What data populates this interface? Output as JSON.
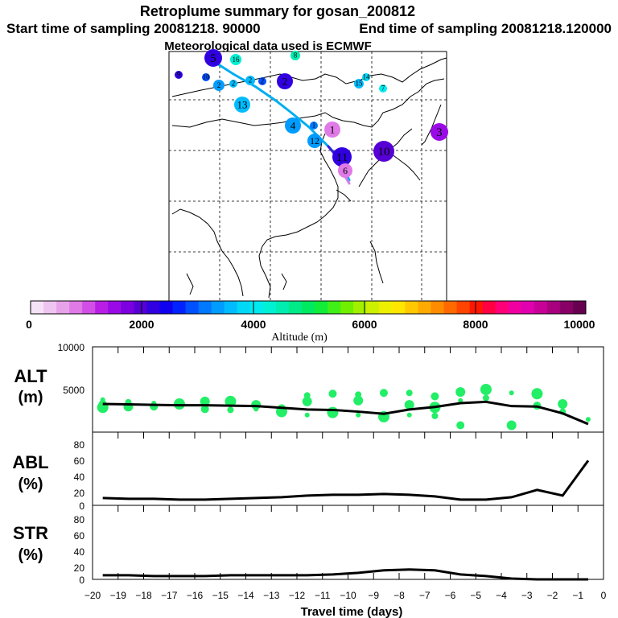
{
  "header": {
    "title": "Retroplume summary for gosan_200812",
    "start": "Start time of sampling 20081218. 90000",
    "end": "End time of sampling 20081218.120000",
    "met": "Meteorological data used is ECMWF"
  },
  "colorbar": {
    "label": "Altitude (m)",
    "ticks": [
      "0",
      "2000",
      "4000",
      "6000",
      "8000",
      "10000"
    ],
    "colors": [
      "#f6e2f6",
      "#f0c4f0",
      "#e8a2ea",
      "#e07ae6",
      "#d24ee6",
      "#b81ee6",
      "#9a0ae6",
      "#7c00e0",
      "#5600d6",
      "#3000e0",
      "#1000f0",
      "#0022ff",
      "#0050ff",
      "#0078ff",
      "#009cff",
      "#00bcff",
      "#00d8f8",
      "#00eaf0",
      "#00f0d4",
      "#00ecb0",
      "#00ea88",
      "#00ea60",
      "#10ec38",
      "#40ee18",
      "#70f000",
      "#a2f000",
      "#ccf000",
      "#eef000",
      "#ffe600",
      "#ffc800",
      "#ffaa00",
      "#ff8c00",
      "#ff6a00",
      "#ff4400",
      "#ff1800",
      "#ff0040",
      "#ff0078",
      "#f000a0",
      "#e000b0",
      "#c80098",
      "#a8007e",
      "#880066",
      "#680050"
    ]
  },
  "map": {
    "plume_points": [
      {
        "label": "5",
        "alt": 2100
      },
      {
        "label": "16",
        "alt": 4400
      },
      {
        "label": "8",
        "alt": 4600
      },
      {
        "label": "9",
        "alt": 2300
      },
      {
        "label": "10",
        "alt": 3000
      },
      {
        "label": "2",
        "alt": 3400
      },
      {
        "label": "2",
        "alt": 3500
      },
      {
        "label": "2",
        "alt": 3700
      },
      {
        "label": "2",
        "alt": 2800
      },
      {
        "label": "2",
        "alt": 2100
      },
      {
        "label": "13",
        "alt": 3500
      },
      {
        "label": "15",
        "alt": 3700
      },
      {
        "label": "14",
        "alt": 3800
      },
      {
        "label": "7",
        "alt": 4000
      },
      {
        "label": "4",
        "alt": 3300
      },
      {
        "label": "1",
        "alt": 3200
      },
      {
        "label": "1",
        "alt": 800
      },
      {
        "label": "12",
        "alt": 3300
      },
      {
        "label": "3",
        "alt": 1600
      },
      {
        "label": "11",
        "alt": 2200
      },
      {
        "label": "10",
        "alt": 1900
      },
      {
        "label": "6",
        "alt": 700
      }
    ]
  },
  "panels": {
    "alt": {
      "label_top": "ALT",
      "label_bottom": "(m)",
      "yticks": [
        "10000",
        "5000",
        "0"
      ]
    },
    "abl": {
      "label_top": "ABL",
      "label_bottom": "(%)",
      "yticks": [
        "80",
        "60",
        "40",
        "20",
        "0"
      ]
    },
    "str": {
      "label_top": "STR",
      "label_bottom": "(%)",
      "yticks": [
        "80",
        "60",
        "40",
        "20",
        "0"
      ]
    }
  },
  "chart_data": [
    {
      "type": "line",
      "title": "ALT (m)",
      "xlabel": "Travel time (days)",
      "ylabel": "ALT (m)",
      "xlim": [
        -20,
        0
      ],
      "ylim": [
        0,
        10000
      ],
      "x": [
        -19.6,
        -18.6,
        -17.6,
        -16.6,
        -15.6,
        -14.6,
        -13.6,
        -12.6,
        -11.6,
        -10.6,
        -9.6,
        -8.6,
        -7.6,
        -6.6,
        -5.6,
        -4.6,
        -3.6,
        -2.6,
        -1.6,
        -0.6
      ],
      "series": [
        {
          "name": "mean altitude",
          "values": [
            3300,
            3250,
            3200,
            3150,
            3150,
            3100,
            3050,
            2850,
            2650,
            2600,
            2400,
            2150,
            2650,
            2950,
            3400,
            3550,
            3050,
            3000,
            2200,
            950
          ]
        }
      ],
      "scatter": {
        "x": [
          -19.6,
          -19.6,
          -19.6,
          -18.6,
          -18.6,
          -17.6,
          -17.6,
          -16.6,
          -16.6,
          -15.6,
          -15.6,
          -15.6,
          -14.6,
          -14.6,
          -13.6,
          -13.6,
          -12.6,
          -12.6,
          -11.6,
          -11.6,
          -11.6,
          -10.6,
          -10.6,
          -9.6,
          -9.6,
          -9.6,
          -8.6,
          -8.6,
          -7.6,
          -7.6,
          -7.6,
          -6.6,
          -6.6,
          -6.6,
          -5.6,
          -5.6,
          -5.6,
          -4.6,
          -4.6,
          -3.6,
          -3.6,
          -2.6,
          -2.6,
          -1.6,
          -1.6,
          -0.6
        ],
        "y": [
          3800,
          3300,
          2900,
          3500,
          3000,
          3400,
          3000,
          3300,
          3100,
          3600,
          3000,
          2700,
          3600,
          2600,
          3200,
          2700,
          2800,
          2400,
          4300,
          3600,
          2000,
          4500,
          2300,
          4400,
          3700,
          2000,
          4600,
          1800,
          4600,
          3200,
          2000,
          4200,
          2900,
          1900,
          4700,
          3700,
          800,
          5000,
          4000,
          800,
          4600,
          3100,
          4500,
          2400,
          3300,
          1500
        ]
      }
    },
    {
      "type": "line",
      "title": "ABL (%)",
      "xlabel": "Travel time (days)",
      "ylabel": "ABL (%)",
      "xlim": [
        -20,
        0
      ],
      "ylim": [
        0,
        90
      ],
      "x": [
        -19.6,
        -18.6,
        -17.6,
        -16.6,
        -15.6,
        -14.6,
        -13.6,
        -12.6,
        -11.6,
        -10.6,
        -9.6,
        -8.6,
        -7.6,
        -6.6,
        -5.6,
        -4.6,
        -3.6,
        -2.6,
        -1.6,
        -0.6
      ],
      "series": [
        {
          "name": "ABL",
          "values": [
            9,
            8,
            8,
            7,
            7,
            8,
            9,
            10,
            12,
            13,
            13,
            14,
            13,
            11,
            7,
            7,
            10,
            19,
            12,
            55
          ]
        }
      ]
    },
    {
      "type": "line",
      "title": "STR (%)",
      "xlabel": "Travel time (days)",
      "ylabel": "STR (%)",
      "xlim": [
        -20,
        0
      ],
      "ylim": [
        0,
        90
      ],
      "x": [
        -19.6,
        -18.6,
        -17.6,
        -16.6,
        -15.6,
        -14.6,
        -13.6,
        -12.6,
        -11.6,
        -10.6,
        -9.6,
        -8.6,
        -7.6,
        -6.6,
        -5.6,
        -4.6,
        -3.6,
        -2.6,
        -1.6,
        -0.6
      ],
      "series": [
        {
          "name": "STR",
          "values": [
            5,
            5,
            4,
            4,
            4,
            5,
            5,
            5,
            5,
            6,
            8,
            11,
            12,
            11,
            6,
            4,
            1,
            0,
            0,
            0
          ]
        }
      ]
    }
  ],
  "xaxis": {
    "label": "Travel time (days)",
    "ticks": [
      "−20",
      "−19",
      "−18",
      "−17",
      "−16",
      "−15",
      "−14",
      "−13",
      "−12",
      "−11",
      "−10",
      "−9",
      "−8",
      "−7",
      "−6",
      "−5",
      "−4",
      "−3",
      "−2",
      "−1",
      "0"
    ]
  }
}
